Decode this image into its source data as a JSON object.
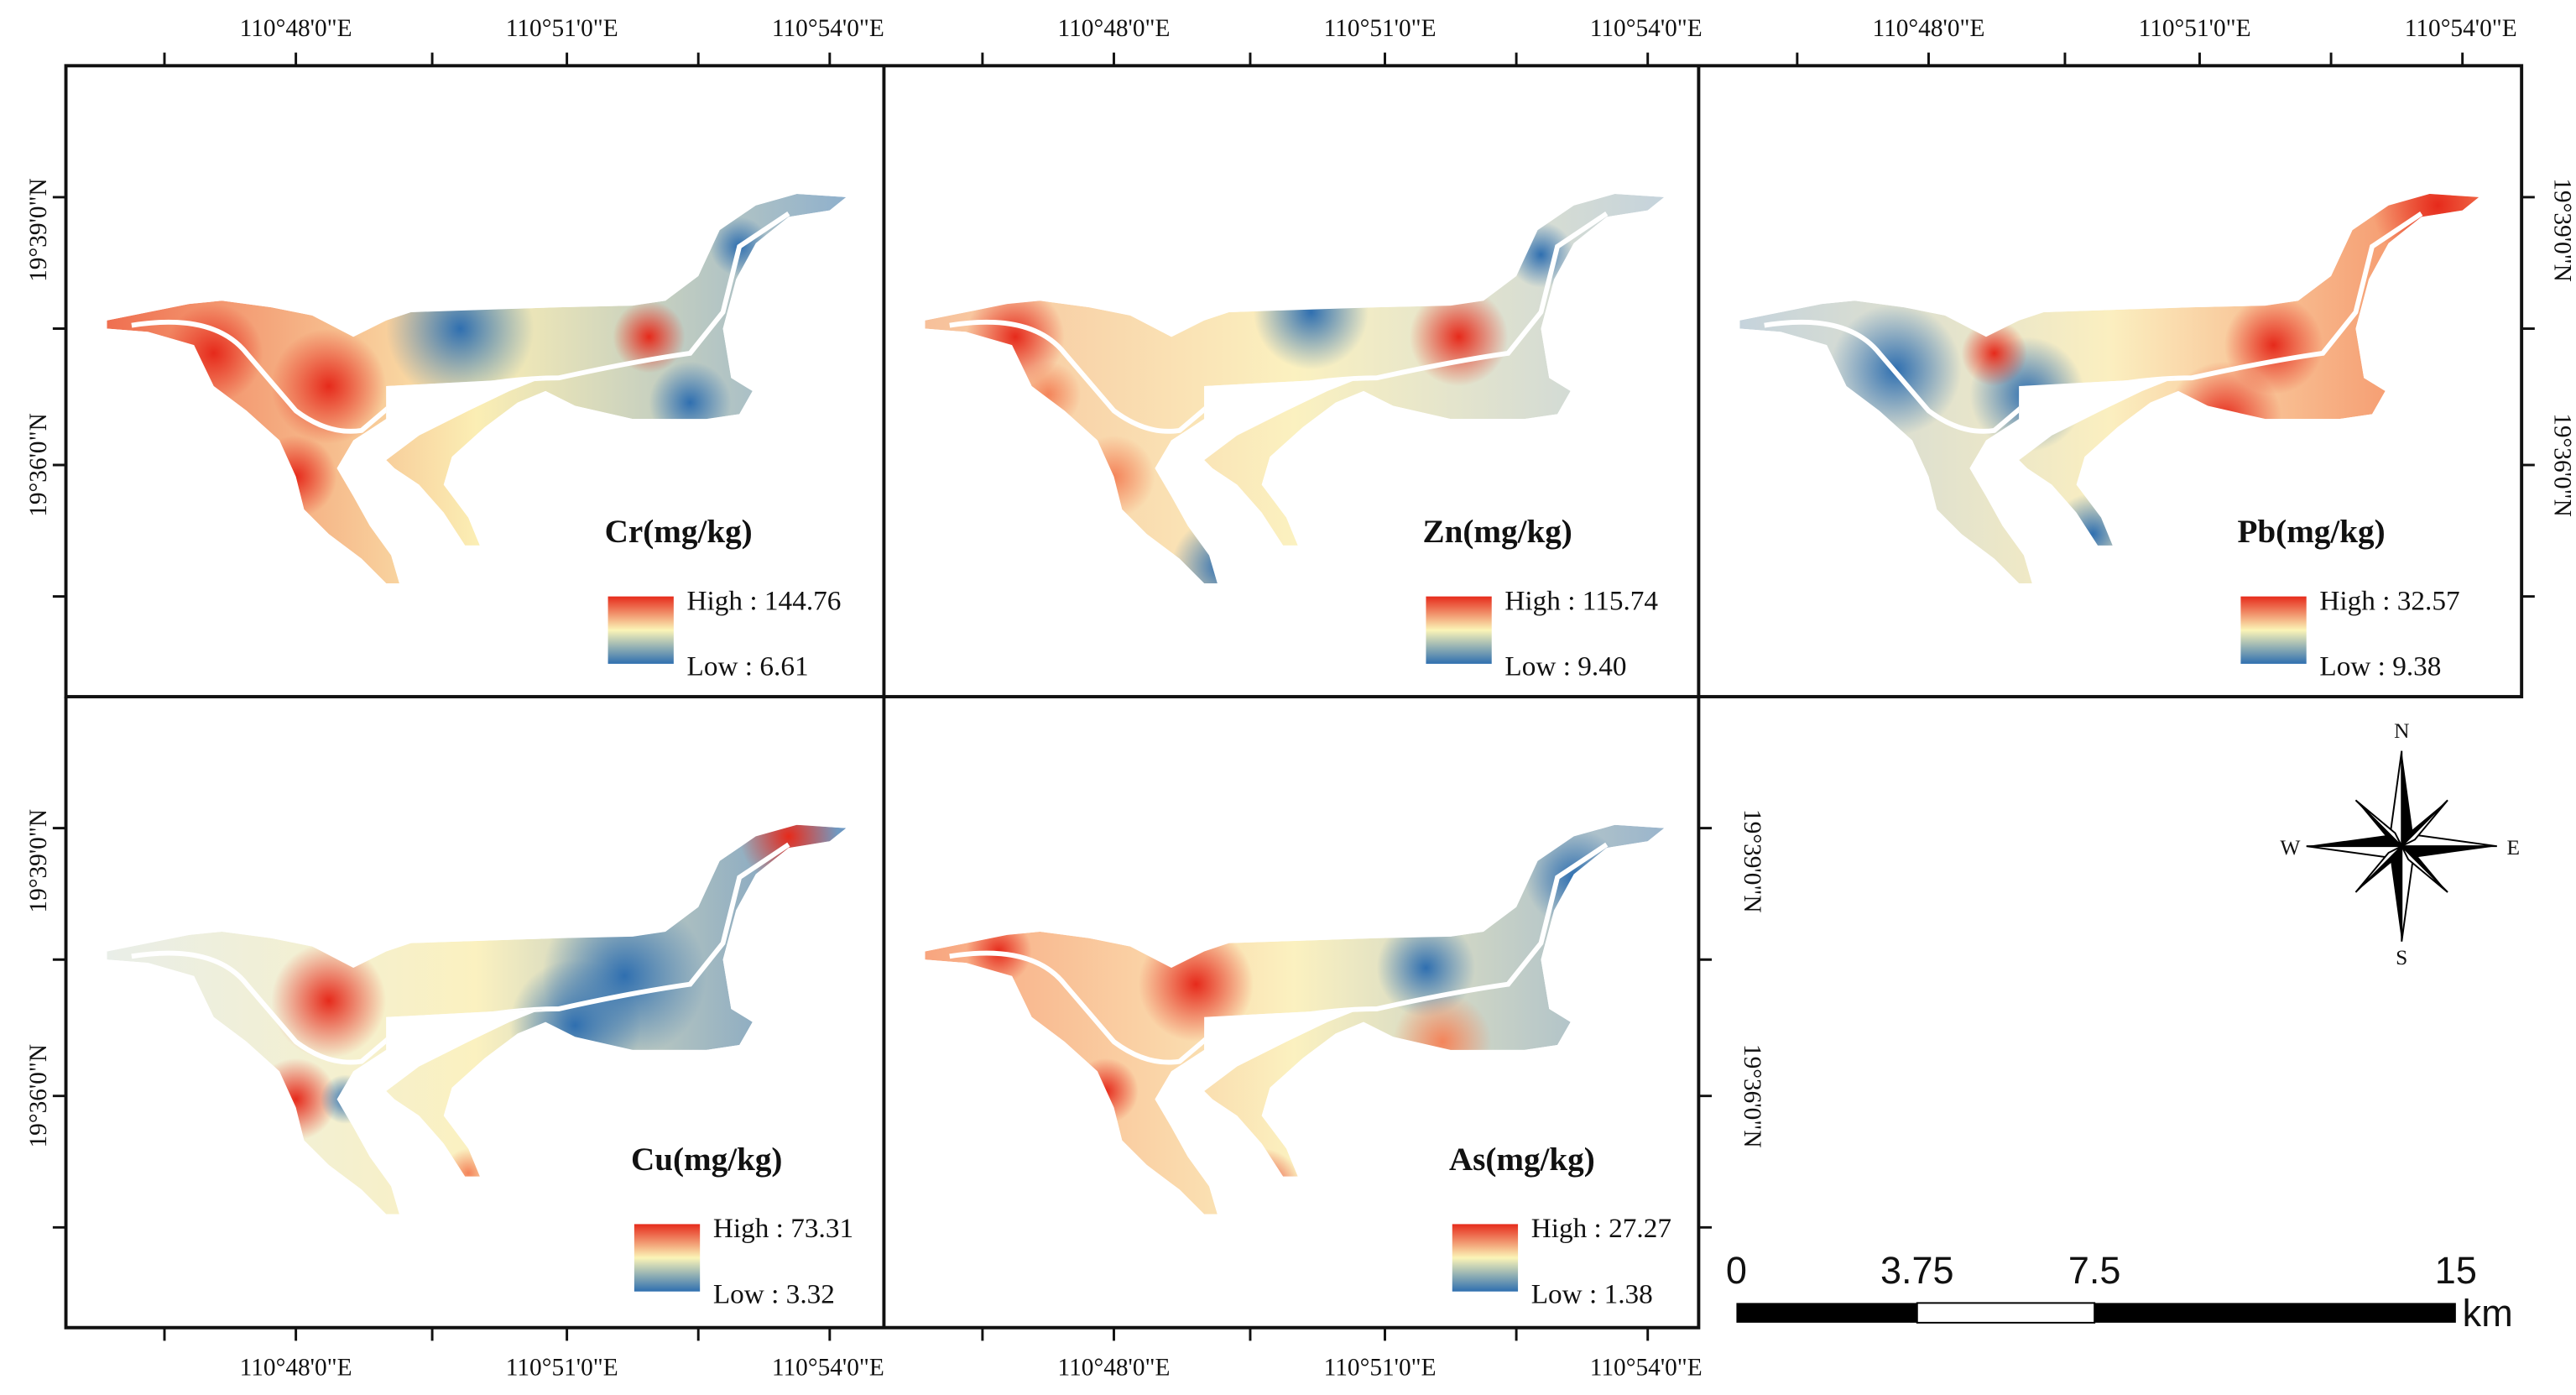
{
  "panels": [
    {
      "title": "Cr(mg/kg)",
      "high": "High : 144.76",
      "low": "Low : 6.61"
    },
    {
      "title": "Zn(mg/kg)",
      "high": "High : 115.74",
      "low": "Low : 9.40"
    },
    {
      "title": "Pb(mg/kg)",
      "high": "High : 32.57",
      "low": "Low : 9.38"
    },
    {
      "title": "Cu(mg/kg)",
      "high": "High : 73.31",
      "low": "Low : 3.32"
    },
    {
      "title": "As(mg/kg)",
      "high": "High : 27.27",
      "low": "Low : 1.38"
    }
  ],
  "longitude_labels": [
    "110°48'0\"E",
    "110°51'0\"E",
    "110°54'0\"E"
  ],
  "latitude_labels": [
    "19°39'0\"N",
    "19°36'0\"N"
  ],
  "compass": {
    "north": "N",
    "south": "S",
    "east": "E",
    "west": "W"
  },
  "scale_bar": {
    "labels": [
      "0",
      "3.75",
      "7.5",
      "15"
    ],
    "unit": "km"
  }
}
